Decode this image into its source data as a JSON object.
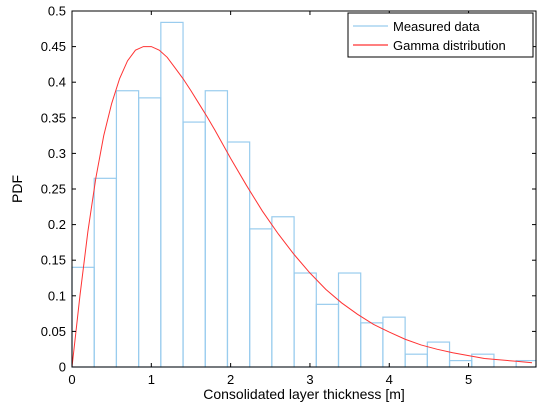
{
  "chart_data": {
    "type": "bar",
    "title": "",
    "xlabel": "Consolidated layer thickness [m]",
    "ylabel": "PDF",
    "xlim": [
      0,
      5.85
    ],
    "ylim": [
      0,
      0.5
    ],
    "xticks": [
      0,
      1,
      2,
      3,
      4,
      5
    ],
    "xtick_labels": [
      "0",
      "1",
      "2",
      "3",
      "4",
      "5"
    ],
    "yticks": [
      0,
      0.05,
      0.1,
      0.15,
      0.2,
      0.25,
      0.3,
      0.35,
      0.4,
      0.45,
      0.5
    ],
    "ytick_labels": [
      "0",
      "0.05",
      "0.1",
      "0.15",
      "0.2",
      "0.25",
      "0.3",
      "0.35",
      "0.4",
      "0.45",
      "0.5"
    ],
    "grid": false,
    "legend_position": "top-right",
    "series": [
      {
        "name": "Measured data",
        "type": "histogram",
        "color": "#99ccee",
        "bin_edges": [
          0,
          0.28,
          0.56,
          0.84,
          1.12,
          1.4,
          1.68,
          1.96,
          2.24,
          2.52,
          2.8,
          3.08,
          3.36,
          3.64,
          3.92,
          4.2,
          4.48,
          4.76,
          5.04,
          5.32,
          5.6,
          5.85
        ],
        "values": [
          0.14,
          0.265,
          0.388,
          0.378,
          0.484,
          0.344,
          0.388,
          0.316,
          0.194,
          0.211,
          0.132,
          0.088,
          0.132,
          0.062,
          0.07,
          0.018,
          0.035,
          0.009,
          0.018,
          0.0,
          0.009
        ]
      },
      {
        "name": "Gamma distribution",
        "type": "line",
        "color": "#ff3333",
        "x": [
          0,
          0.05,
          0.1,
          0.2,
          0.3,
          0.4,
          0.5,
          0.6,
          0.7,
          0.8,
          0.9,
          1.0,
          1.1,
          1.2,
          1.3,
          1.4,
          1.5,
          1.6,
          1.7,
          1.8,
          1.9,
          2.0,
          2.2,
          2.4,
          2.6,
          2.8,
          3.0,
          3.2,
          3.4,
          3.6,
          3.8,
          4.0,
          4.2,
          4.4,
          4.6,
          4.8,
          5.0,
          5.2,
          5.4,
          5.6,
          5.8
        ],
        "y": [
          0,
          0.05,
          0.1,
          0.19,
          0.265,
          0.325,
          0.37,
          0.405,
          0.43,
          0.445,
          0.45,
          0.45,
          0.445,
          0.435,
          0.42,
          0.405,
          0.388,
          0.37,
          0.352,
          0.333,
          0.313,
          0.293,
          0.255,
          0.219,
          0.187,
          0.158,
          0.132,
          0.109,
          0.09,
          0.074,
          0.06,
          0.049,
          0.039,
          0.031,
          0.025,
          0.02,
          0.016,
          0.012,
          0.01,
          0.008,
          0.006
        ]
      }
    ]
  }
}
